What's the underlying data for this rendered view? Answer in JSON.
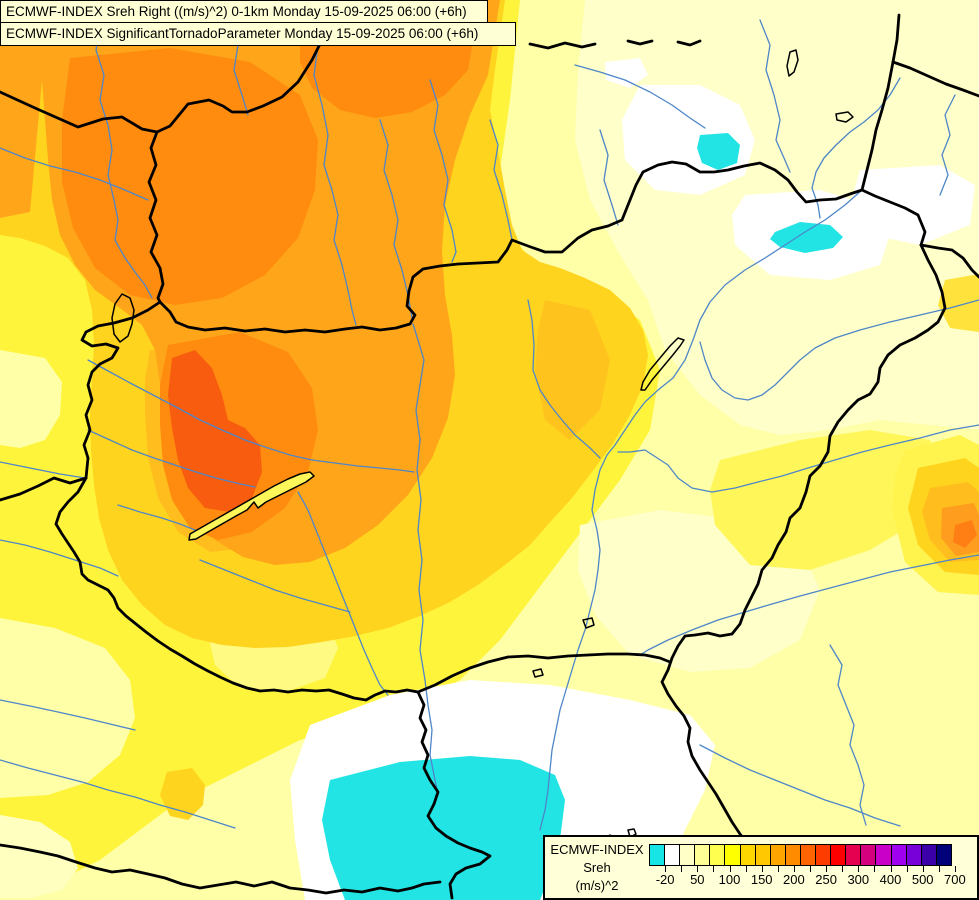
{
  "titles": {
    "line1": "ECMWF-INDEX Sreh Right ((m/s)^2) 0-1km Monday 15-09-2025 06:00 (+6h)",
    "line2": "ECMWF-INDEX SignificantTornadoParameter Monday 15-09-2025 06:00 (+6h)"
  },
  "legend": {
    "header": "ECMWF-INDEX",
    "param": "Sreh",
    "unit": "(m/s)^2",
    "tick_labels": [
      "-20",
      "50",
      "100",
      "150",
      "200",
      "250",
      "300",
      "400",
      "500",
      "700"
    ],
    "colors": [
      "#17E5E5",
      "#FFFFFF",
      "#FFFFC8",
      "#FFFF96",
      "#FFFF50",
      "#FFFF00",
      "#FFD700",
      "#FFC800",
      "#FFA500",
      "#FF8C00",
      "#FF6400",
      "#FF3C00",
      "#FF0000",
      "#E60050",
      "#D4007D",
      "#C800C8",
      "#A000F0",
      "#7800D8",
      "#3C00A8",
      "#000078"
    ]
  },
  "map_colors": {
    "country_border": "#000000",
    "river": "#4E86C8",
    "secondary_border": "#8A8A8A",
    "negative_area": "#22E4E4",
    "background_low": "#FFFFC9",
    "background_mid": "#FFF43C",
    "background_high": "#FFA519"
  }
}
